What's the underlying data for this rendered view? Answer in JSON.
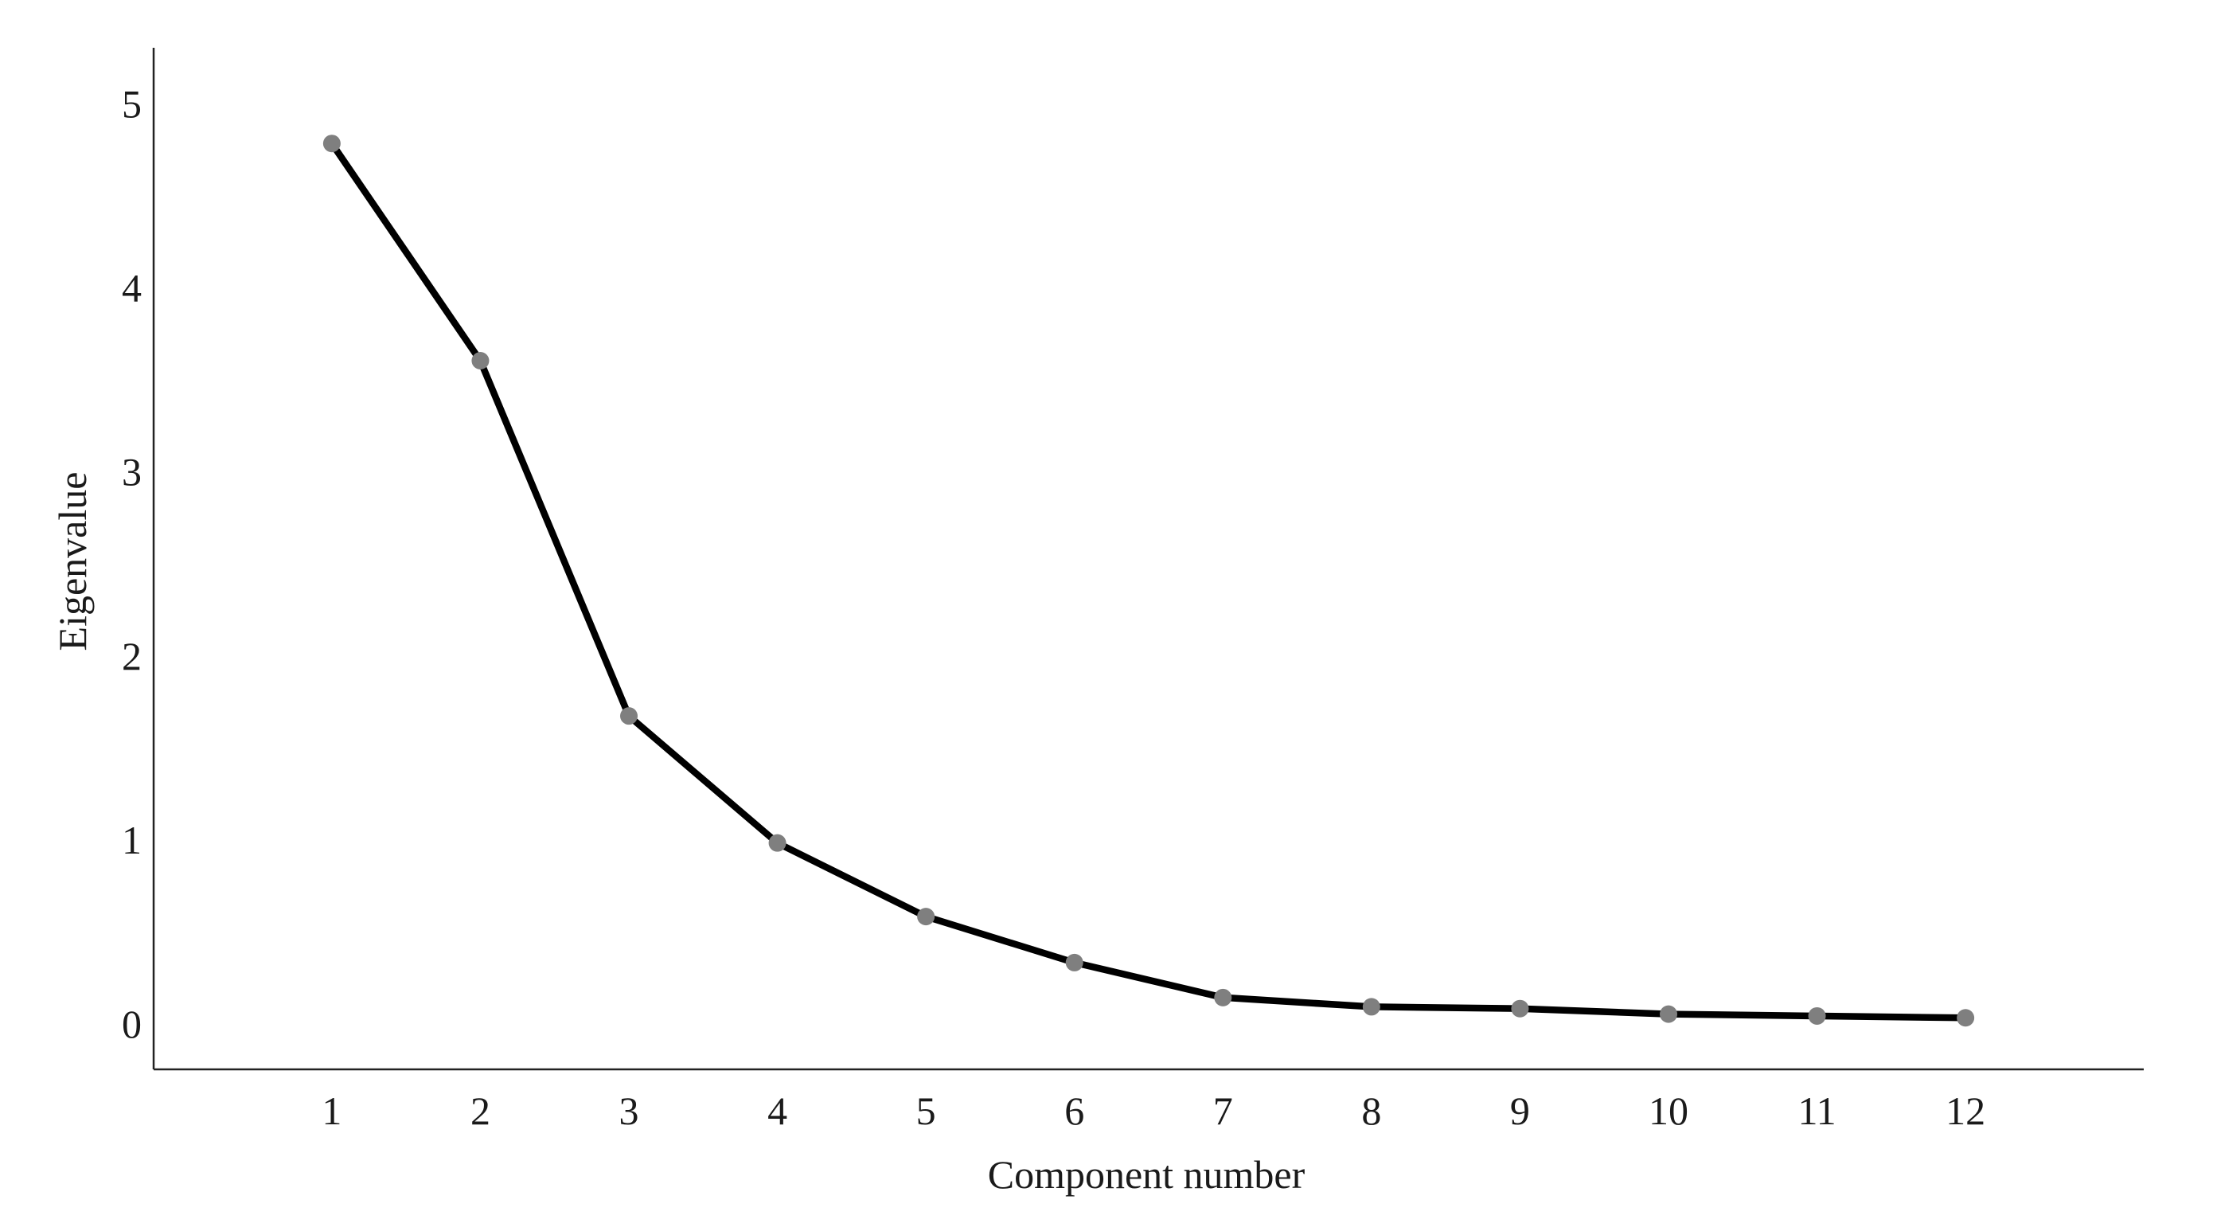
{
  "chart_data": {
    "type": "line",
    "title": "",
    "xlabel": "Component number",
    "ylabel": "Eigenvalue",
    "x": [
      1,
      2,
      3,
      4,
      5,
      6,
      7,
      8,
      9,
      10,
      11,
      12
    ],
    "x_tick_labels": [
      "1",
      "2",
      "3",
      "4",
      "5",
      "6",
      "7",
      "8",
      "9",
      "10",
      "11",
      "12"
    ],
    "y_ticks": [
      0,
      1,
      2,
      3,
      4,
      5
    ],
    "y_tick_labels": [
      "0",
      "1",
      "2",
      "3",
      "4",
      "5"
    ],
    "xlim": [
      -0.2,
      13.2
    ],
    "ylim": [
      -0.25,
      5.3
    ],
    "grid": false,
    "series": [
      {
        "values": [
          4.78,
          3.6,
          1.67,
          0.98,
          0.58,
          0.33,
          0.14,
          0.09,
          0.08,
          0.05,
          0.04,
          0.03
        ],
        "line_color": "#000000",
        "marker_color": "#7f7f7f"
      }
    ]
  }
}
